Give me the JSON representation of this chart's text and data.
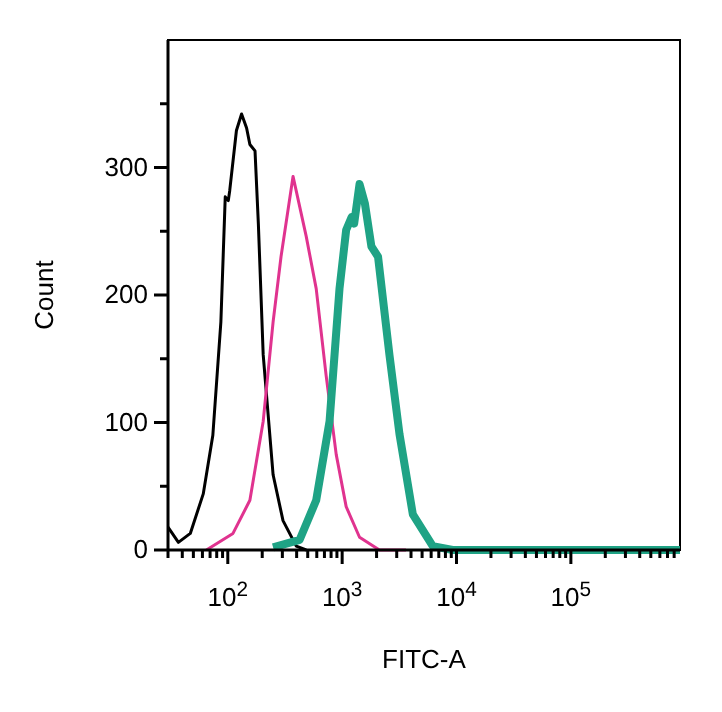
{
  "chart_data": {
    "type": "line",
    "xlabel": "FITC-A",
    "ylabel": "Count",
    "log": "x",
    "marker": "none",
    "line_style": "solid",
    "xlim": [
      30,
      900000
    ],
    "ylim": [
      0,
      400
    ],
    "xticks": [
      {
        "value": 30,
        "label": null
      },
      {
        "value": 40,
        "label": null
      },
      {
        "value": 50,
        "label": null
      },
      {
        "value": 60,
        "label": null
      },
      {
        "value": 70,
        "label": null
      },
      {
        "value": 80,
        "label": null
      },
      {
        "value": 90,
        "label": null
      },
      {
        "value": 100,
        "label": "10$^{2}$"
      },
      {
        "value": 200,
        "label": null
      },
      {
        "value": 300,
        "label": null
      },
      {
        "value": 400,
        "label": null
      },
      {
        "value": 500,
        "label": null
      },
      {
        "value": 600,
        "label": null
      },
      {
        "value": 700,
        "label": null
      },
      {
        "value": 800,
        "label": null
      },
      {
        "value": 900,
        "label": null
      },
      {
        "value": 1000,
        "label": "10$^{3}$"
      },
      {
        "value": 2000,
        "label": null
      },
      {
        "value": 3000,
        "label": null
      },
      {
        "value": 4000,
        "label": null
      },
      {
        "value": 5000,
        "label": null
      },
      {
        "value": 6000,
        "label": null
      },
      {
        "value": 7000,
        "label": null
      },
      {
        "value": 8000,
        "label": null
      },
      {
        "value": 9000,
        "label": null
      },
      {
        "value": 10000,
        "label": "10$^{4}$"
      },
      {
        "value": 20000,
        "label": null
      },
      {
        "value": 30000,
        "label": null
      },
      {
        "value": 40000,
        "label": null
      },
      {
        "value": 50000,
        "label": null
      },
      {
        "value": 60000,
        "label": null
      },
      {
        "value": 70000,
        "label": null
      },
      {
        "value": 80000,
        "label": null
      },
      {
        "value": 90000,
        "label": null
      },
      {
        "value": 100000,
        "label": "10$^{5}$"
      },
      {
        "value": 200000,
        "label": null
      },
      {
        "value": 300000,
        "label": null
      },
      {
        "value": 400000,
        "label": null
      },
      {
        "value": 500000,
        "label": null
      },
      {
        "value": 600000,
        "label": null
      },
      {
        "value": 700000,
        "label": null
      },
      {
        "value": 800000,
        "label": null
      }
    ],
    "yticks": [
      0,
      {
        "value": 50,
        "label": null
      },
      100,
      {
        "value": 150,
        "label": null
      },
      200,
      {
        "value": 250,
        "label": null
      },
      300,
      {
        "value": 350,
        "label": null
      }
    ],
    "series": [
      {
        "color": "#000000",
        "x": [
          30,
          37,
          47,
          61,
          74,
          87,
          95,
          101,
          104,
          119,
          132,
          146,
          156,
          173,
          185,
          204,
          249,
          304,
          397,
          485
        ],
        "values": [
          18,
          6,
          13,
          44,
          90,
          179,
          277,
          274,
          282,
          329,
          342,
          331,
          318,
          313,
          256,
          153,
          59,
          23,
          3,
          0
        ]
      },
      {
        "color": "#e0338f",
        "x": [
          65,
          111,
          156,
          204,
          249,
          292,
          372,
          485,
          593,
          724,
          887,
          1084,
          1419,
          2118,
          3614
        ],
        "values": [
          0,
          13,
          39,
          101,
          179,
          230,
          293,
          246,
          205,
          137,
          75,
          34,
          10,
          0,
          0
        ]
      },
      {
        "color": "#1fa385",
        "x": [
          249,
          425,
          593,
          776,
          948,
          1084,
          1208,
          1273,
          1419,
          1579,
          1803,
          2060,
          2592,
          3171,
          4150,
          6200,
          9270,
          900000
        ],
        "values": [
          2,
          8,
          39,
          101,
          205,
          251,
          261,
          256,
          287,
          272,
          238,
          230,
          153,
          91,
          28,
          3,
          0,
          0
        ]
      }
    ]
  }
}
